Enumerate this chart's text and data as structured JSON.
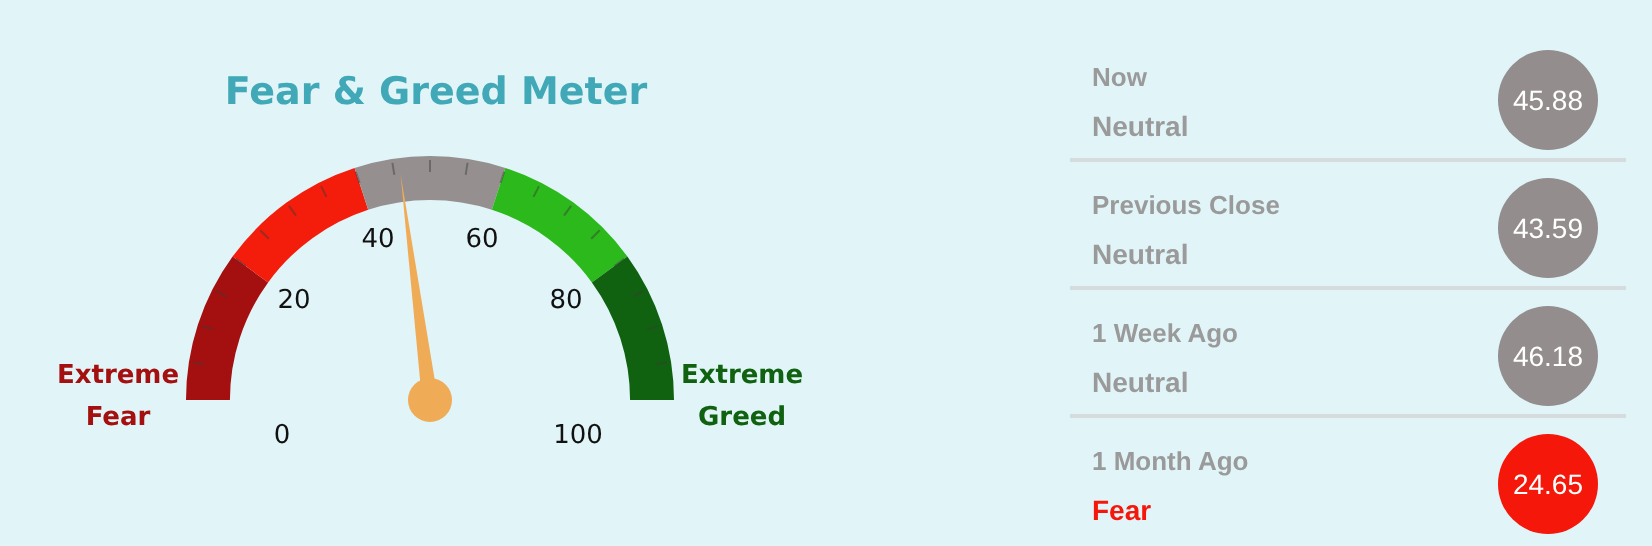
{
  "chart_data": [
    {
      "type": "donut",
      "title": "Fear & Greed Meter",
      "categories": [
        "Extreme Fear",
        null,
        null,
        null,
        "Extreme Greed"
      ],
      "values": [
        20,
        20,
        20,
        20,
        20
      ],
      "colors": [
        "#a40f0f",
        "#f41c0a",
        "#958f8f",
        "#2cb91c",
        "#106210"
      ],
      "annotations": [
        "0",
        "20",
        "40",
        "60",
        "80",
        "100"
      ],
      "legend": false
    },
    {
      "type": "other",
      "categories": [
        "Now",
        "Previous Close",
        "1 Week Ago",
        "1 Month Ago"
      ],
      "values": [
        45.88,
        43.59,
        46.18,
        24.65
      ],
      "annotations": [
        "Neutral",
        "Neutral",
        "Neutral",
        "Fear"
      ],
      "colors": [
        "#938d8d",
        "#938d8d",
        "#938d8d",
        "#f4170a"
      ],
      "data_labels": true
    }
  ]
}
